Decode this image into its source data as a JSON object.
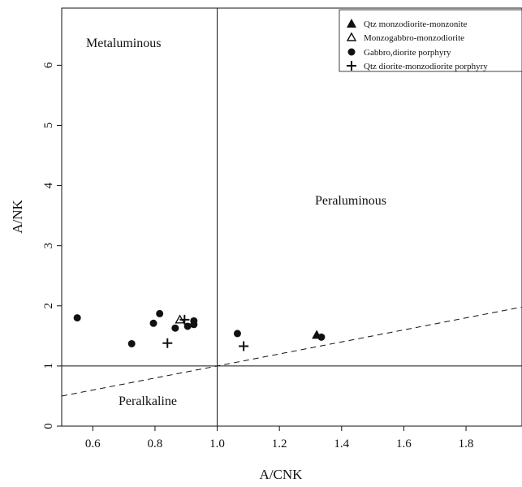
{
  "chart_data": {
    "type": "scatter",
    "title": "",
    "xlabel": "A/CNK",
    "ylabel": "A/NK",
    "xlim": [
      0.5,
      1.98
    ],
    "ylim": [
      0,
      6.95
    ],
    "x_ticks": [
      0.6,
      0.8,
      1.0,
      1.2,
      1.4,
      1.6,
      1.8
    ],
    "x_tick_labels": [
      "0.6",
      "0.8",
      "1.0",
      "1.2",
      "1.4",
      "1.6",
      "1.8"
    ],
    "y_ticks": [
      0,
      1,
      2,
      3,
      4,
      5,
      6
    ],
    "y_tick_labels": [
      "0",
      "1",
      "2",
      "3",
      "4",
      "5",
      "6"
    ],
    "grid": false,
    "legend_position": "top-right",
    "regions": {
      "metaluminous": "Metaluminous",
      "peraluminous": "Peraluminous",
      "peralkaline": "Peralkaline"
    },
    "reference_lines": {
      "vertical_x": 1.0,
      "horizontal_y": 1.0,
      "dashed_line": {
        "from": [
          0.5,
          0.5
        ],
        "to": [
          1.98,
          1.98
        ]
      }
    },
    "series": [
      {
        "name": "Qtz monzodiorite-monzonite",
        "marker": "filled-triangle",
        "points": [
          [
            1.32,
            1.52
          ]
        ]
      },
      {
        "name": "Monzogabbro-monzodiorite",
        "marker": "open-triangle",
        "points": [
          [
            0.88,
            1.77
          ]
        ]
      },
      {
        "name": "Gabbro,diorite porphyry",
        "marker": "filled-circle",
        "points": [
          [
            0.55,
            1.8
          ],
          [
            0.725,
            1.37
          ],
          [
            0.795,
            1.71
          ],
          [
            0.815,
            1.87
          ],
          [
            0.865,
            1.63
          ],
          [
            0.905,
            1.66
          ],
          [
            0.925,
            1.69
          ],
          [
            0.925,
            1.75
          ],
          [
            1.065,
            1.54
          ],
          [
            1.335,
            1.48
          ]
        ]
      },
      {
        "name": "Qtz diorite-monzodiorite porphyry",
        "marker": "plus",
        "points": [
          [
            0.84,
            1.38
          ],
          [
            0.895,
            1.77
          ],
          [
            1.085,
            1.33
          ]
        ]
      }
    ]
  }
}
